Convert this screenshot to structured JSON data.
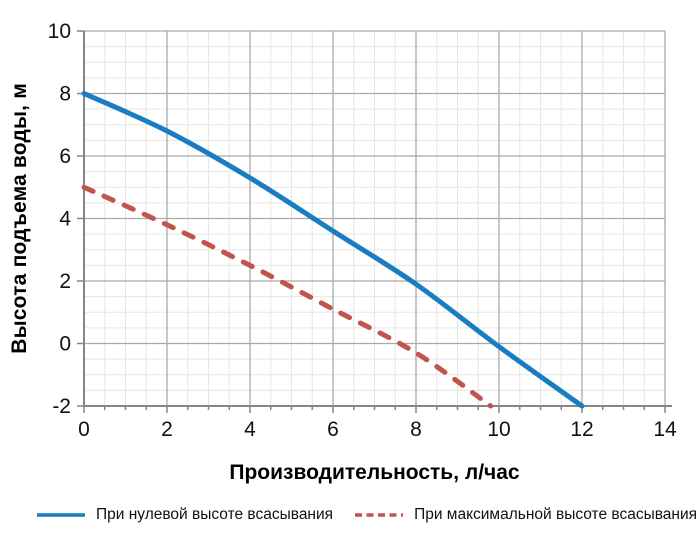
{
  "chart_data": {
    "type": "line",
    "title": "",
    "xlabel": "Производительность, л/час",
    "ylabel": "Высота подъема воды, м",
    "xlim": [
      0,
      14
    ],
    "ylim": [
      -2,
      10
    ],
    "x_ticks": [
      0,
      2,
      4,
      6,
      8,
      10,
      12,
      14
    ],
    "y_ticks": [
      -2,
      0,
      2,
      4,
      6,
      8,
      10
    ],
    "x_major_step": 2,
    "x_minor_step": 0.5,
    "y_major_step": 2,
    "y_minor_step": 0.5,
    "grid": "major+minor",
    "legend_position": "bottom",
    "series": [
      {
        "name": "При нулевой высоте всасывания",
        "style": "solid",
        "color": "#1a7cc1",
        "points": [
          [
            0,
            8
          ],
          [
            2,
            6.8
          ],
          [
            4,
            5.3
          ],
          [
            6,
            3.6
          ],
          [
            8,
            1.9
          ],
          [
            10,
            -0.1
          ],
          [
            12,
            -2
          ]
        ]
      },
      {
        "name": "При максимальной высоте всасывания",
        "style": "dashed",
        "color": "#c0544e",
        "points": [
          [
            0,
            5
          ],
          [
            2,
            3.8
          ],
          [
            4,
            2.5
          ],
          [
            6,
            1.1
          ],
          [
            8,
            -0.3
          ],
          [
            9.8,
            -2
          ]
        ]
      }
    ]
  },
  "colors": {
    "major_grid": "#a9a9a9",
    "minor_grid": "#e5e5e5",
    "axis": "#858585",
    "tick_label": "#111111"
  }
}
